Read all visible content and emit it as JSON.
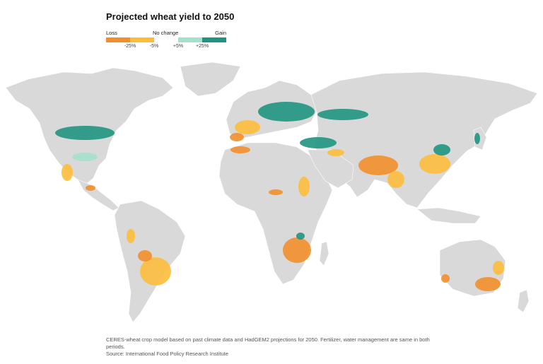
{
  "title": "Projected wheat yield to 2050",
  "legend": {
    "loss_label": "Loss",
    "no_change_label": "No change",
    "gain_label": "Gain",
    "ticks": [
      "-25%",
      "-5%",
      "+5%",
      "+25%"
    ],
    "colors": {
      "strong_loss": "#f28e2b",
      "loss": "#fcbd3c",
      "no_change": "#ffffff",
      "gain": "#a5e0cb",
      "strong_gain": "#1f9480"
    }
  },
  "map_colors": {
    "land": "#d9d9d9",
    "ocean": "#ffffff"
  },
  "footnote": {
    "line1": "CERES-wheat crop model based on past climate data and HadGEM2 projections for 2050. Fertilizer, water management are same in both periods.",
    "source": "Source: International Food Policy Research Institute"
  }
}
